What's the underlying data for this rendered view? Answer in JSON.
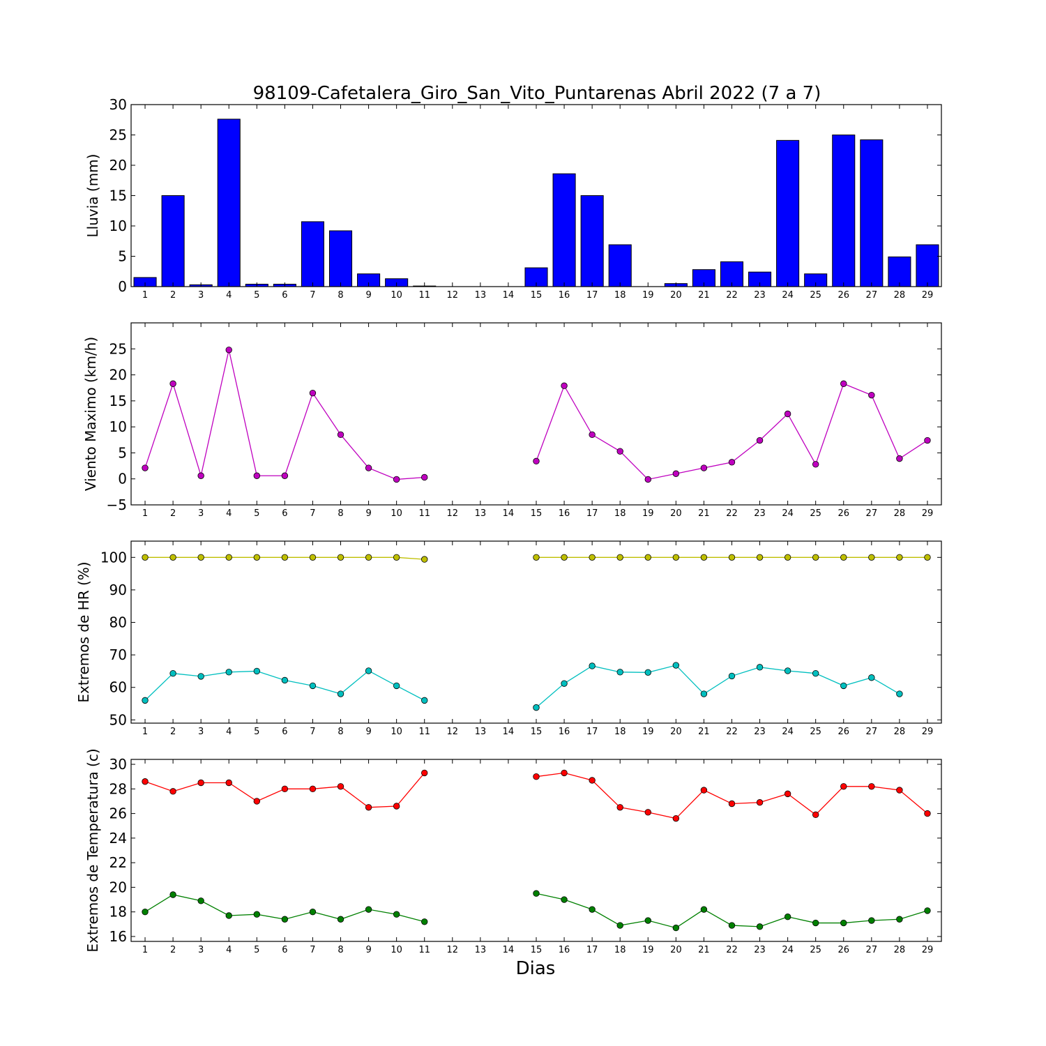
{
  "figure": {
    "title": "98109-Cafetalera_Giro_San_Vito_Puntarenas Abril 2022  (7 a 7)",
    "xlabel": "Dias"
  },
  "chart_data": [
    {
      "id": "rain",
      "type": "bar",
      "title": "98109-Cafetalera_Giro_San_Vito_Puntarenas Abril 2022  (7 a 7)",
      "ylabel": "Lluvia (mm)",
      "xlabel": "",
      "ylim": [
        0,
        30
      ],
      "yticks": [
        0,
        5,
        10,
        15,
        20,
        25,
        30
      ],
      "categories": [
        1,
        2,
        3,
        4,
        5,
        6,
        7,
        8,
        9,
        10,
        11,
        12,
        13,
        14,
        15,
        16,
        17,
        18,
        19,
        20,
        21,
        22,
        23,
        24,
        25,
        26,
        27,
        28,
        29
      ],
      "series": [
        {
          "color": "#0000ff",
          "values": [
            1.5,
            15.0,
            0.3,
            27.6,
            0.4,
            0.4,
            10.7,
            9.2,
            2.1,
            1.3,
            0.1,
            null,
            null,
            null,
            3.1,
            18.6,
            15.0,
            6.9,
            0.0,
            0.5,
            2.8,
            4.1,
            2.4,
            24.1,
            2.1,
            25.0,
            24.2,
            4.9,
            6.9
          ]
        }
      ],
      "grid": false
    },
    {
      "id": "wind",
      "type": "line",
      "ylabel": "Viento Maximo (km/h)",
      "xlabel": "",
      "ylim": [
        -5,
        30
      ],
      "yticks": [
        -5,
        0,
        5,
        10,
        15,
        20,
        25
      ],
      "categories": [
        1,
        2,
        3,
        4,
        5,
        6,
        7,
        8,
        9,
        10,
        11,
        12,
        13,
        14,
        15,
        16,
        17,
        18,
        19,
        20,
        21,
        22,
        23,
        24,
        25,
        26,
        27,
        28,
        29
      ],
      "series": [
        {
          "color": "#bf00bf",
          "values": [
            2.1,
            18.3,
            0.6,
            24.8,
            0.6,
            0.6,
            16.5,
            8.5,
            2.1,
            -0.1,
            0.3,
            null,
            null,
            null,
            3.4,
            17.9,
            8.5,
            5.3,
            -0.1,
            1.0,
            2.1,
            3.2,
            7.4,
            12.5,
            2.8,
            18.3,
            16.1,
            3.9,
            7.4
          ]
        }
      ],
      "grid": false
    },
    {
      "id": "humidity",
      "type": "line",
      "ylabel": "Extremos de HR (%)",
      "xlabel": "",
      "ylim": [
        49,
        105
      ],
      "yticks": [
        50,
        60,
        70,
        80,
        90,
        100
      ],
      "categories": [
        1,
        2,
        3,
        4,
        5,
        6,
        7,
        8,
        9,
        10,
        11,
        12,
        13,
        14,
        15,
        16,
        17,
        18,
        19,
        20,
        21,
        22,
        23,
        24,
        25,
        26,
        27,
        28,
        29
      ],
      "series": [
        {
          "color": "#bfbf00",
          "values": [
            100,
            100,
            100,
            100,
            100,
            100,
            100,
            100,
            100,
            100,
            99.4,
            null,
            null,
            null,
            100,
            100,
            100,
            100,
            100,
            100,
            100,
            100,
            100,
            100,
            100,
            100,
            100,
            100,
            100
          ]
        },
        {
          "color": "#00bfbf",
          "values": [
            56.0,
            64.3,
            63.4,
            64.7,
            65.0,
            62.2,
            60.5,
            58.0,
            65.1,
            60.5,
            56.0,
            null,
            null,
            null,
            53.8,
            61.2,
            66.6,
            64.7,
            64.6,
            66.8,
            58.0,
            63.5,
            66.2,
            65.1,
            64.3,
            60.5,
            63.0,
            58.0,
            null
          ]
        }
      ],
      "grid": false
    },
    {
      "id": "temperature",
      "type": "line",
      "ylabel": "Extremos de Temperatura (c)",
      "xlabel": "Dias",
      "ylim": [
        15.6,
        30.4
      ],
      "yticks": [
        16,
        18,
        20,
        22,
        24,
        26,
        28,
        30
      ],
      "categories": [
        1,
        2,
        3,
        4,
        5,
        6,
        7,
        8,
        9,
        10,
        11,
        12,
        13,
        14,
        15,
        16,
        17,
        18,
        19,
        20,
        21,
        22,
        23,
        24,
        25,
        26,
        27,
        28,
        29
      ],
      "series": [
        {
          "color": "#ff0000",
          "values": [
            28.6,
            27.8,
            28.5,
            28.5,
            27.0,
            28.0,
            28.0,
            28.2,
            26.5,
            26.6,
            29.3,
            null,
            null,
            null,
            29.0,
            29.3,
            28.7,
            26.5,
            26.1,
            25.6,
            27.9,
            26.8,
            26.9,
            27.6,
            25.9,
            28.2,
            28.2,
            27.9,
            26.0
          ]
        },
        {
          "color": "#008000",
          "values": [
            18.0,
            19.4,
            18.9,
            17.7,
            17.8,
            17.4,
            18.0,
            17.4,
            18.2,
            17.8,
            17.2,
            null,
            null,
            null,
            19.5,
            19.0,
            18.2,
            16.9,
            17.3,
            16.7,
            18.2,
            16.9,
            16.8,
            17.6,
            17.1,
            17.1,
            17.3,
            17.4,
            18.1
          ]
        }
      ],
      "grid": false
    }
  ]
}
